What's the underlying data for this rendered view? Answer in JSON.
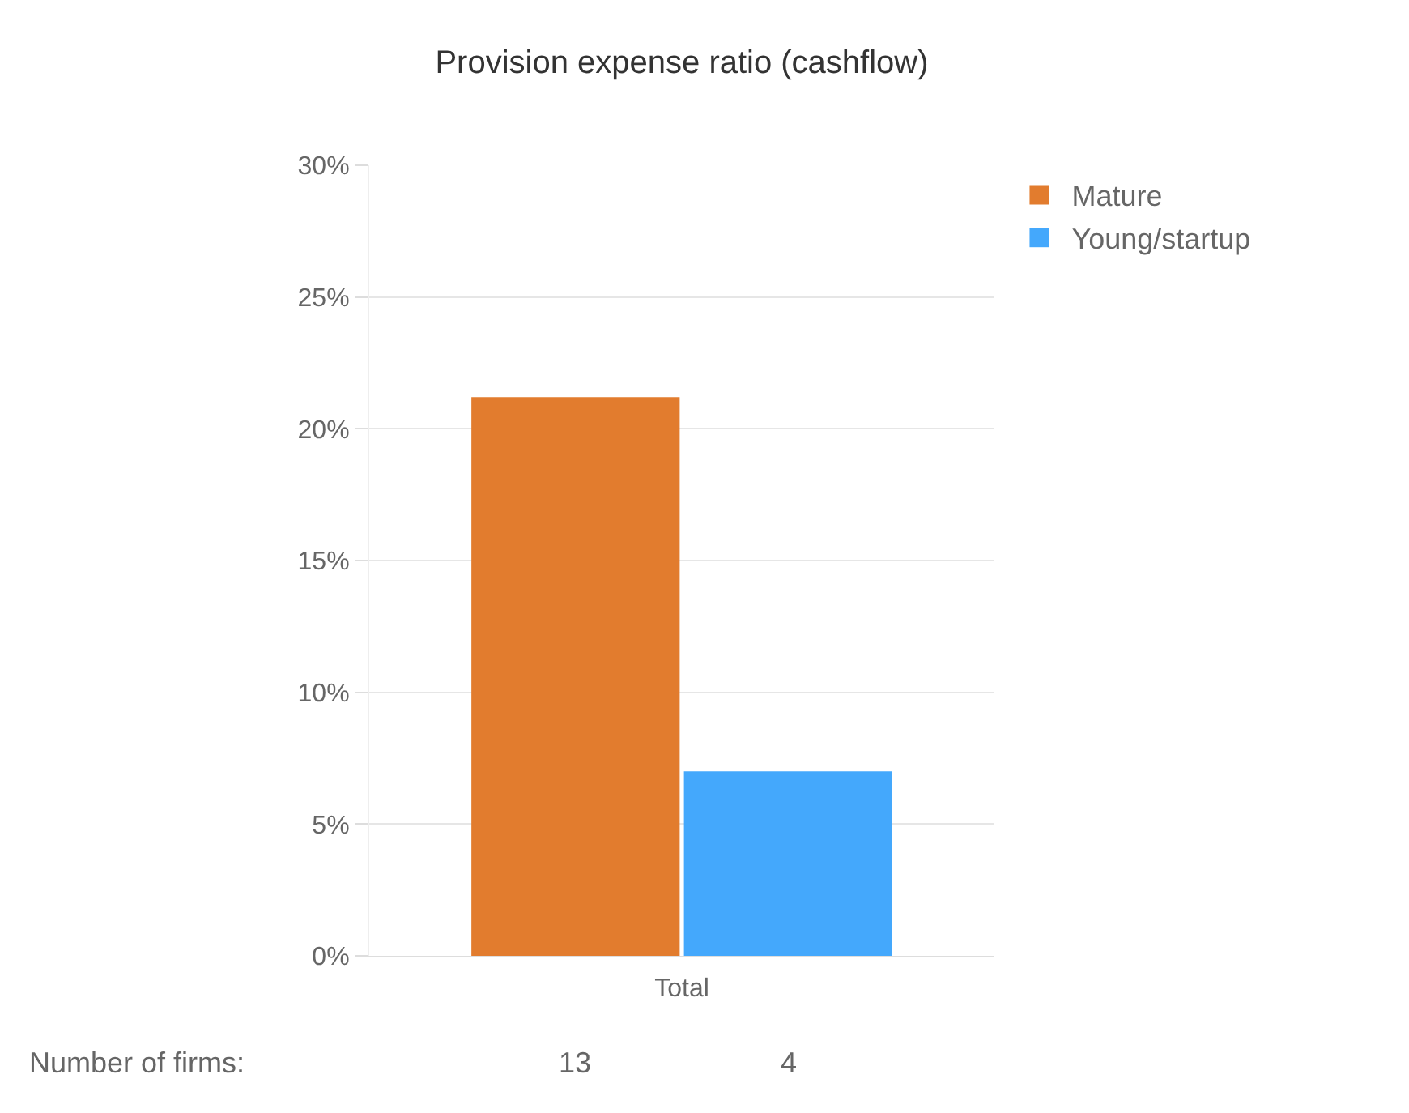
{
  "chart_data": {
    "type": "bar",
    "title": "Provision expense ratio (cashflow)",
    "categories": [
      "Total"
    ],
    "series": [
      {
        "name": "Mature",
        "color": "#e27c2e",
        "values": [
          21.2
        ]
      },
      {
        "name": "Young/startup",
        "color": "#44a8fc",
        "values": [
          7.0
        ]
      }
    ],
    "ylim": [
      0,
      30
    ],
    "yticks": [
      {
        "value": 0,
        "label": "0%"
      },
      {
        "value": 5,
        "label": "5%"
      },
      {
        "value": 10,
        "label": "10%"
      },
      {
        "value": 15,
        "label": "15%"
      },
      {
        "value": 20,
        "label": "20%"
      },
      {
        "value": 25,
        "label": "25%"
      },
      {
        "value": 30,
        "label": "30%"
      }
    ],
    "grid": "y",
    "legend": "top right",
    "annotations": [
      "Number of firms:",
      "13",
      "4"
    ]
  }
}
